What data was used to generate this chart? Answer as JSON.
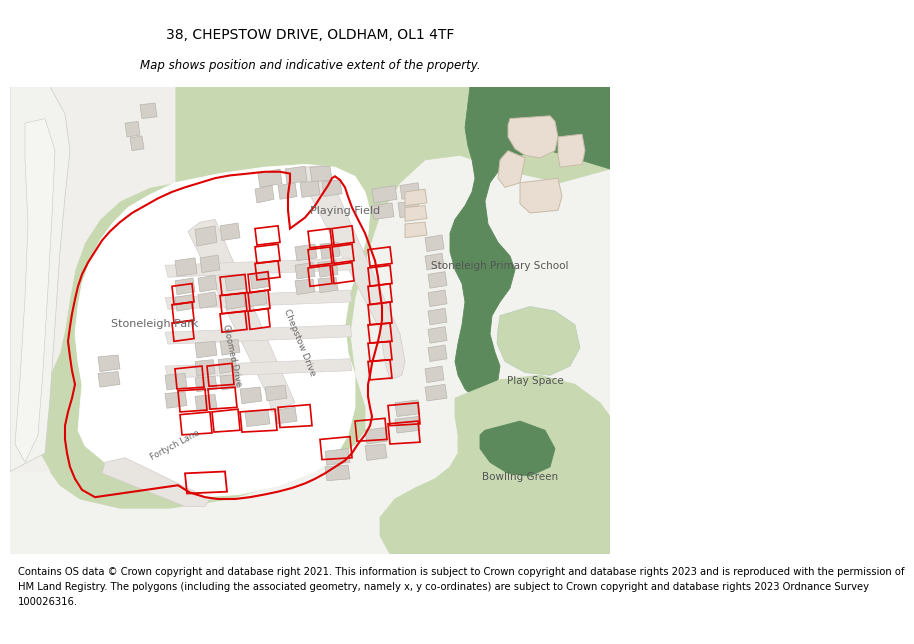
{
  "title": "38, CHEPSTOW DRIVE, OLDHAM, OL1 4TF",
  "subtitle": "Map shows position and indicative extent of the property.",
  "footer_lines": [
    "Contains OS data © Crown copyright and database right 2021. This information is subject to Crown copyright and database rights 2023 and is reproduced with the permission of",
    "HM Land Registry. The polygons (including the associated geometry, namely x, y co-ordinates) are subject to Crown copyright and database rights 2023 Ordnance Survey",
    "100026316."
  ],
  "bg_color": "#f2f2ee",
  "green_light": "#c8d9b2",
  "green_dark": "#5c8a5c",
  "building_gray": "#d4cfc8",
  "building_outline": "#b8b4ae",
  "school_fill": "#e8ddd0",
  "school_outline": "#c8bba8",
  "red": "#dd0000",
  "white": "#ffffff",
  "road_gray": "#e8e4e0",
  "title_fontsize": 10,
  "subtitle_fontsize": 8.5,
  "footer_fontsize": 7.2,
  "label_color": "#555555"
}
